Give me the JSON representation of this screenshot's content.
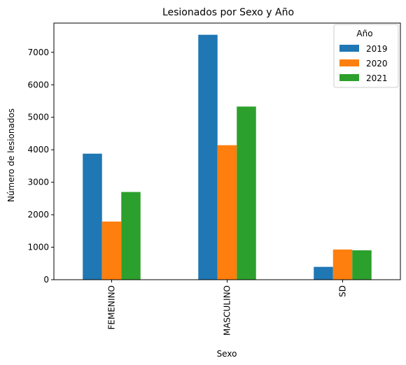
{
  "chart_data": {
    "type": "bar",
    "title": "Lesionados por Sexo y Año",
    "xlabel": "Sexo",
    "ylabel": "Número de lesionados",
    "categories": [
      "FEMENINO",
      "MASCULINO",
      "SD"
    ],
    "series": [
      {
        "name": "2019",
        "color": "#1f77b4",
        "values": [
          3880,
          7540,
          395
        ]
      },
      {
        "name": "2020",
        "color": "#ff7f0e",
        "values": [
          1790,
          4140,
          930
        ]
      },
      {
        "name": "2021",
        "color": "#2ca02c",
        "values": [
          2700,
          5330,
          905
        ]
      }
    ],
    "ylim": [
      0,
      7900
    ],
    "yticks": [
      0,
      1000,
      2000,
      3000,
      4000,
      5000,
      6000,
      7000
    ],
    "grid": false,
    "legend": {
      "title": "Año",
      "position": "top-right"
    }
  }
}
